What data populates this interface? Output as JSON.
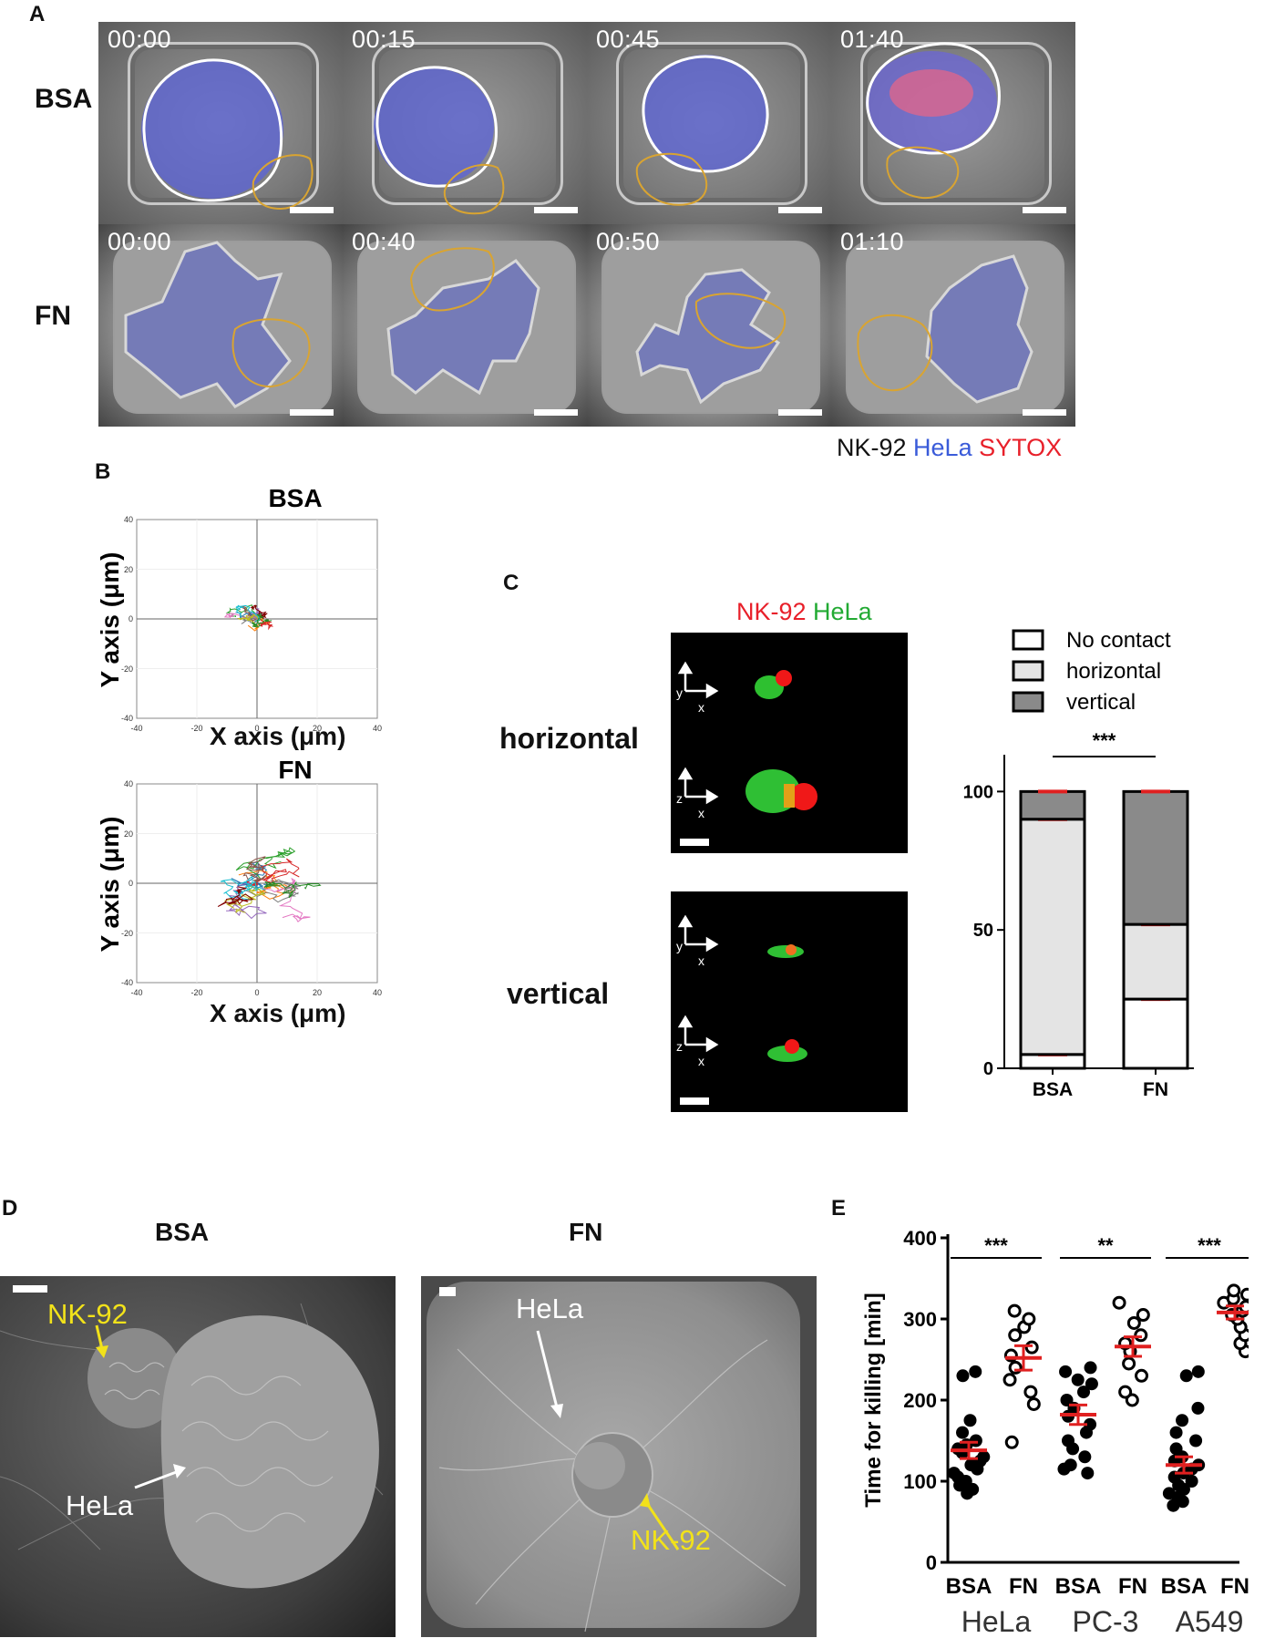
{
  "panels": {
    "A": {
      "label": "A",
      "rows": [
        {
          "label": "BSA",
          "times": [
            "00:00",
            "00:15",
            "00:45",
            "01:40"
          ]
        },
        {
          "label": "FN",
          "times": [
            "00:00",
            "00:40",
            "00:50",
            "01:10"
          ]
        }
      ],
      "channels": [
        {
          "name": "NK-92",
          "color": "#111111"
        },
        {
          "name": "HeLa",
          "color": "#3a5bd9"
        },
        {
          "name": "SYTOX",
          "color": "#e8202a"
        }
      ]
    },
    "B": {
      "label": "B",
      "plots": [
        {
          "title": "BSA",
          "xlabel": "X axis (μm)",
          "ylabel": "Y axis (μm)",
          "x_ticks": [
            "-40",
            "-20",
            "0",
            "20",
            "40"
          ],
          "y_ticks": [
            "40",
            "20",
            "0",
            "-20",
            "-40"
          ]
        },
        {
          "title": "FN",
          "xlabel": "X axis (μm)",
          "ylabel": "Y axis (μm)",
          "x_ticks": [
            "-40",
            "-20",
            "0",
            "20",
            "40"
          ],
          "y_ticks": [
            "40",
            "20",
            "0",
            "-20",
            "-40"
          ]
        }
      ]
    },
    "C": {
      "label": "C",
      "channels": [
        {
          "name": "NK-92",
          "color": "#e8202a"
        },
        {
          "name": "HeLa",
          "color": "#22aa33"
        }
      ],
      "rows": [
        "horizontal",
        "vertical"
      ],
      "axis_marks": {
        "y": "y",
        "z": "z",
        "x": "x"
      }
    },
    "D": {
      "label": "D",
      "images": [
        {
          "title": "BSA",
          "annotations": [
            "NK-92",
            "HeLa"
          ]
        },
        {
          "title": "FN",
          "annotations": [
            "HeLa",
            "NK-92"
          ]
        }
      ]
    },
    "E": {
      "label": "E"
    }
  },
  "chart_data": [
    {
      "type": "bar",
      "stacked": true,
      "panel": "C",
      "categories": [
        "BSA",
        "FN"
      ],
      "series": [
        {
          "name": "No contact",
          "values": [
            5,
            25
          ]
        },
        {
          "name": "horizontal",
          "values": [
            85,
            27
          ]
        },
        {
          "name": "vertical",
          "values": [
            10,
            48
          ]
        }
      ],
      "legend": [
        "No contact",
        "horizontal",
        "vertical"
      ],
      "y_ticks": [
        "0",
        "50",
        "100"
      ],
      "ylim": [
        0,
        110
      ],
      "significance": "***",
      "legend_position": "top",
      "colors": {
        "No contact": "#ffffff",
        "horizontal": "#e4e4e4",
        "vertical": "#8a8a8a",
        "error": "#e02020"
      }
    },
    {
      "type": "scatter",
      "panel": "E",
      "ylabel": "Time for killing  [min]",
      "ylim": [
        0,
        400
      ],
      "y_ticks": [
        "0",
        "100",
        "200",
        "300",
        "400"
      ],
      "groups": [
        {
          "cell": "HeLa",
          "condition": "BSA",
          "filled": true,
          "mean": 138,
          "sem": 10,
          "values": [
            85,
            90,
            95,
            100,
            105,
            110,
            115,
            120,
            125,
            130,
            135,
            140,
            145,
            150,
            160,
            175,
            230,
            235
          ]
        },
        {
          "cell": "HeLa",
          "condition": "FN",
          "filled": false,
          "mean": 252,
          "sem": 15,
          "values": [
            148,
            195,
            210,
            225,
            240,
            255,
            265,
            280,
            290,
            300,
            310
          ]
        },
        {
          "cell": "PC-3",
          "condition": "BSA",
          "filled": true,
          "mean": 182,
          "sem": 12,
          "values": [
            110,
            115,
            120,
            130,
            140,
            150,
            160,
            170,
            180,
            190,
            200,
            210,
            220,
            225,
            235,
            240
          ]
        },
        {
          "cell": "PC-3",
          "condition": "FN",
          "filled": false,
          "mean": 266,
          "sem": 12,
          "values": [
            200,
            210,
            230,
            245,
            260,
            270,
            280,
            295,
            305,
            320
          ]
        },
        {
          "cell": "A549",
          "condition": "BSA",
          "filled": true,
          "mean": 120,
          "sem": 10,
          "values": [
            70,
            75,
            80,
            85,
            90,
            95,
            100,
            105,
            110,
            115,
            120,
            125,
            130,
            140,
            150,
            160,
            175,
            190,
            230,
            235
          ]
        },
        {
          "cell": "A549",
          "condition": "FN",
          "filled": false,
          "mean": 308,
          "sem": 8,
          "values": [
            260,
            270,
            280,
            290,
            300,
            305,
            310,
            315,
            320,
            325,
            330,
            335
          ]
        }
      ],
      "cells": [
        "HeLa",
        "PC-3",
        "A549"
      ],
      "conditions": [
        "BSA",
        "FN"
      ],
      "significance": [
        "***",
        "**",
        "***"
      ],
      "mean_color": "#e02020"
    }
  ]
}
